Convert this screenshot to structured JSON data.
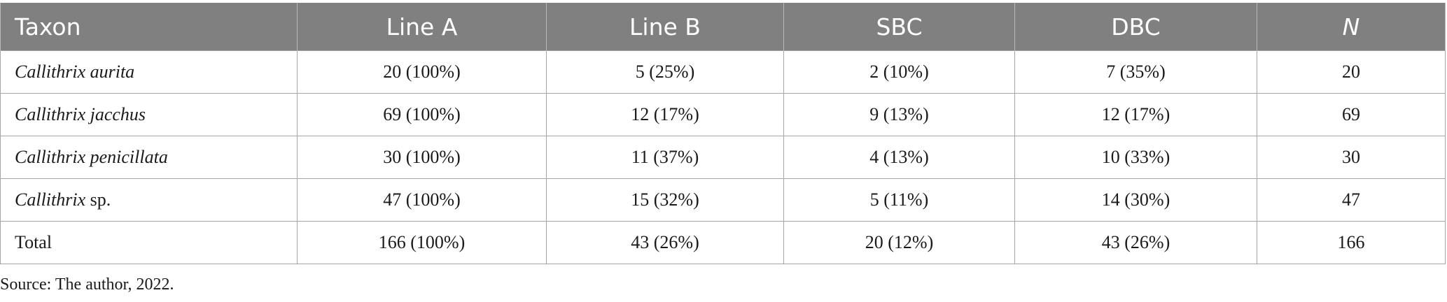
{
  "table": {
    "headers": [
      {
        "label": "Taxon",
        "italic": false
      },
      {
        "label": "Line A",
        "italic": false
      },
      {
        "label": "Line B",
        "italic": false
      },
      {
        "label": "SBC",
        "italic": false
      },
      {
        "label": "DBC",
        "italic": false
      },
      {
        "label": "N",
        "italic": true
      }
    ],
    "rows": [
      {
        "taxon_italic": "Callithrix aurita",
        "taxon_plain": "",
        "line_a": "20 (100%)",
        "line_b": "5 (25%)",
        "sbc": "2 (10%)",
        "dbc": "7 (35%)",
        "n": "20"
      },
      {
        "taxon_italic": "Callithrix jacchus",
        "taxon_plain": "",
        "line_a": "69 (100%)",
        "line_b": "12 (17%)",
        "sbc": "9 (13%)",
        "dbc": "12 (17%)",
        "n": "69"
      },
      {
        "taxon_italic": "Callithrix penicillata",
        "taxon_plain": "",
        "line_a": "30 (100%)",
        "line_b": "11 (37%)",
        "sbc": "4 (13%)",
        "dbc": "10 (33%)",
        "n": "30"
      },
      {
        "taxon_italic": "Callithrix",
        "taxon_plain": " sp.",
        "line_a": "47 (100%)",
        "line_b": "15 (32%)",
        "sbc": "5 (11%)",
        "dbc": "14 (30%)",
        "n": "47"
      },
      {
        "taxon_italic": "",
        "taxon_plain": "Total",
        "line_a": "166 (100%)",
        "line_b": "43 (26%)",
        "sbc": "20 (12%)",
        "dbc": "43 (26%)",
        "n": "166"
      }
    ]
  },
  "source_note": "Source: The author, 2022.",
  "colors": {
    "header_bg": "#808080",
    "header_text": "#ffffff",
    "border": "#a6a6a6"
  }
}
